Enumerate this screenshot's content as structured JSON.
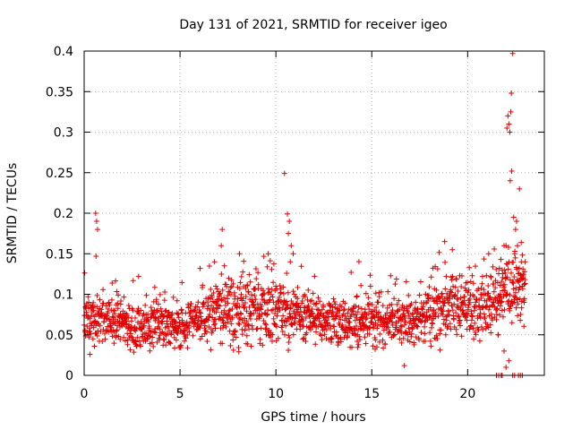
{
  "chart_data": {
    "type": "scatter",
    "title": "Day 131 of 2021, SRMTID for receiver igeo",
    "xlabel": "GPS time / hours",
    "ylabel": "SRMTID / TECUs",
    "xlim": [
      0,
      24
    ],
    "ylim": [
      0,
      0.4
    ],
    "grid": true,
    "grid_style": "dotted",
    "marker": "+",
    "series_color": "#e00000",
    "x_ticks": [
      0,
      5,
      10,
      15,
      20
    ],
    "x_tick_labels": [
      "0",
      "5",
      "10",
      "15",
      "20"
    ],
    "y_ticks": [
      0,
      0.05,
      0.1,
      0.15,
      0.2,
      0.25,
      0.3,
      0.35,
      0.4
    ],
    "y_tick_labels": [
      "0",
      "0.05",
      "0.1",
      "0.15",
      "0.2",
      "0.25",
      "0.3",
      "0.35",
      "0.4"
    ],
    "baseline_trend": [
      [
        0,
        0.07
      ],
      [
        1,
        0.07
      ],
      [
        2,
        0.068
      ],
      [
        3,
        0.06
      ],
      [
        4,
        0.062
      ],
      [
        5,
        0.062
      ],
      [
        6,
        0.068
      ],
      [
        7,
        0.08
      ],
      [
        8,
        0.08
      ],
      [
        9,
        0.082
      ],
      [
        10,
        0.077
      ],
      [
        11,
        0.076
      ],
      [
        12,
        0.072
      ],
      [
        13,
        0.066
      ],
      [
        14,
        0.06
      ],
      [
        15,
        0.063
      ],
      [
        16,
        0.066
      ],
      [
        17,
        0.066
      ],
      [
        18,
        0.076
      ],
      [
        19,
        0.087
      ],
      [
        20,
        0.083
      ],
      [
        21,
        0.09
      ],
      [
        22,
        0.11
      ],
      [
        23,
        0.11
      ]
    ],
    "series": [
      {
        "name": "SRMTID",
        "points": [
          [
            0.6,
            0.2
          ],
          [
            0.65,
            0.19
          ],
          [
            0.7,
            0.18
          ],
          [
            0.62,
            0.147
          ],
          [
            0.3,
            0.026
          ],
          [
            10.45,
            0.249
          ],
          [
            10.6,
            0.199
          ],
          [
            10.7,
            0.19
          ],
          [
            10.65,
            0.175
          ],
          [
            10.8,
            0.16
          ],
          [
            10.9,
            0.15
          ],
          [
            10.75,
            0.14
          ],
          [
            21.7,
            0.1
          ],
          [
            21.8,
            0.13
          ],
          [
            21.9,
            0.16
          ],
          [
            22.0,
            0.16
          ],
          [
            22.05,
            0.305
          ],
          [
            22.1,
            0.32
          ],
          [
            22.15,
            0.31
          ],
          [
            22.2,
            0.3
          ],
          [
            22.25,
            0.325
          ],
          [
            22.3,
            0.252
          ],
          [
            22.22,
            0.24
          ],
          [
            22.28,
            0.348
          ],
          [
            22.35,
            0.397
          ],
          [
            22.4,
            0.195
          ],
          [
            22.5,
            0.18
          ],
          [
            22.6,
            0.16
          ],
          [
            22.7,
            0.23
          ],
          [
            22.55,
            0.19
          ],
          [
            22.45,
            0.15
          ],
          [
            22.8,
            0.14
          ],
          [
            22.9,
            0.12
          ],
          [
            23.0,
            0.14
          ],
          [
            22.85,
            0.11
          ],
          [
            22.95,
            0.09
          ],
          [
            7.2,
            0.18
          ],
          [
            7.15,
            0.16
          ],
          [
            6.8,
            0.14
          ],
          [
            8.1,
            0.15
          ],
          [
            9.6,
            0.15
          ],
          [
            18.8,
            0.165
          ],
          [
            19.2,
            0.155
          ],
          [
            21.1,
            0.15
          ],
          [
            21.6,
            0.05
          ],
          [
            16.7,
            0.012
          ],
          [
            22.0,
            0.01
          ],
          [
            22.15,
            0.018
          ],
          [
            21.9,
            0.03
          ]
        ]
      }
    ],
    "near_zero_x": [
      21.5,
      21.62,
      21.75,
      21.8,
      22.35,
      22.45,
      22.65,
      22.75,
      22.85
    ]
  }
}
